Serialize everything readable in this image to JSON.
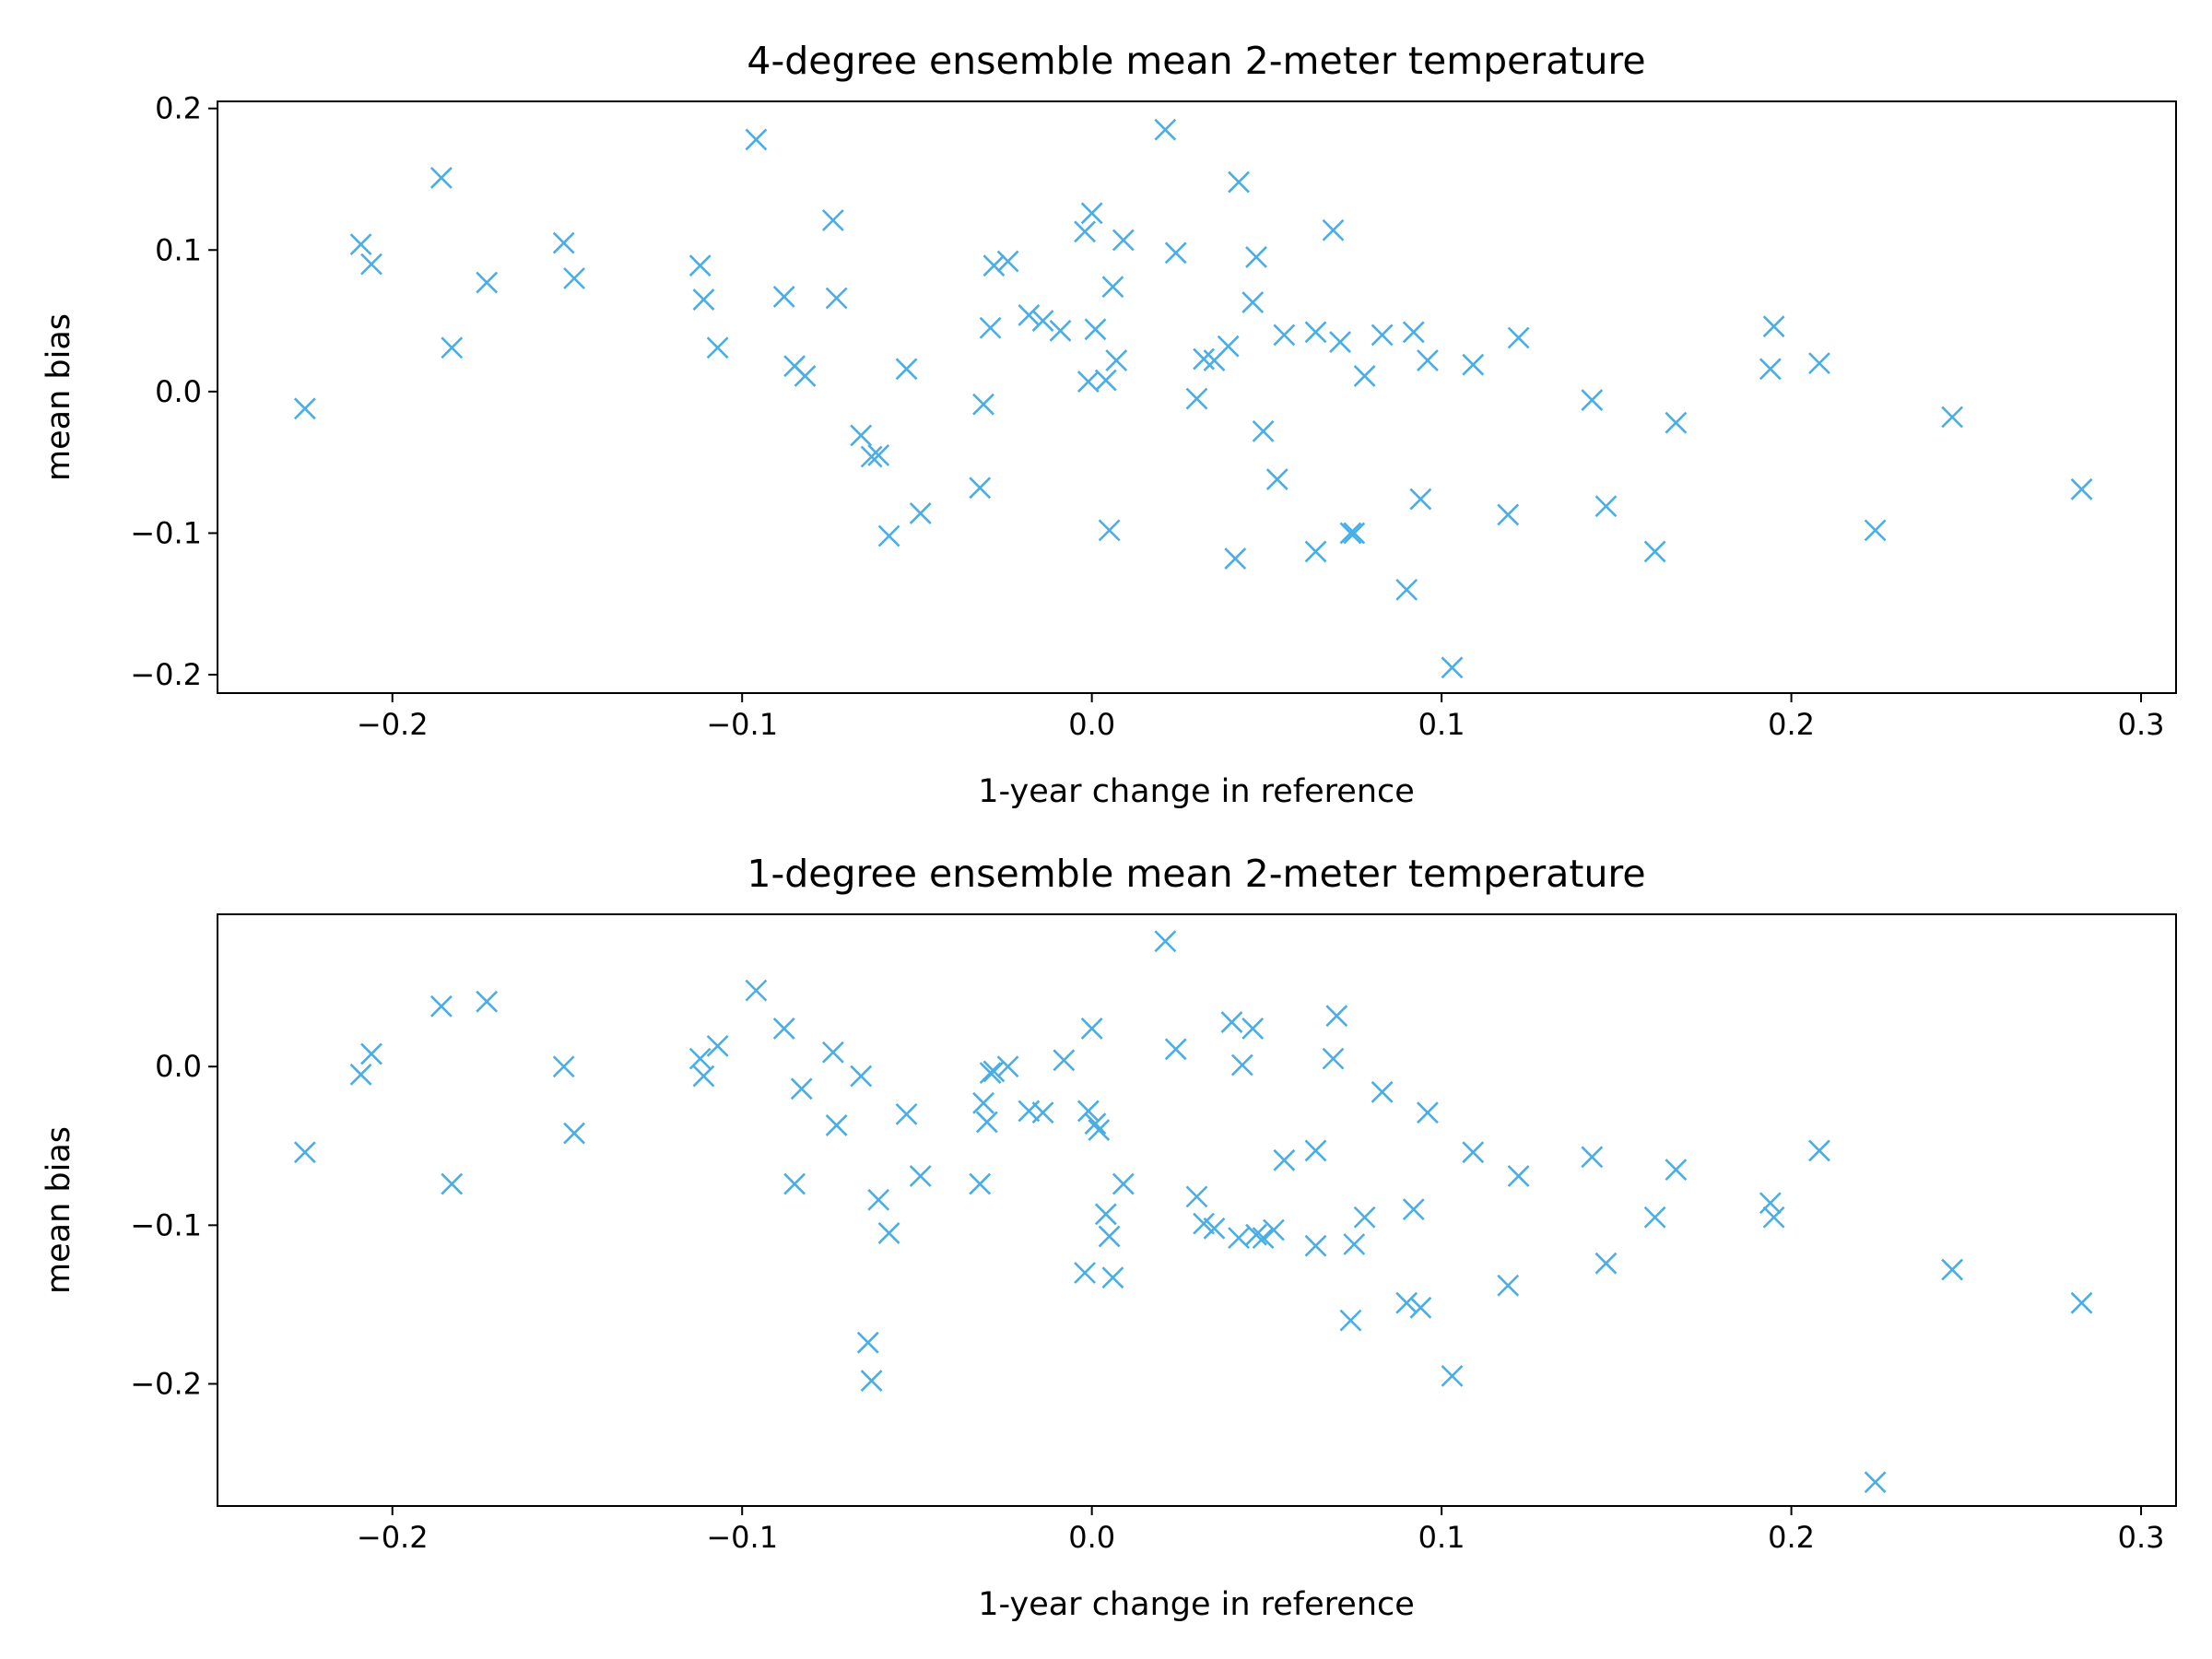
{
  "marker_color": "#4aaee6",
  "chart_data": [
    {
      "type": "scatter",
      "title": "4-degree ensemble mean 2-meter temperature",
      "xlabel": "1-year change in reference",
      "ylabel": "mean bias",
      "xlim": [
        -0.25,
        0.31
      ],
      "ylim": [
        -0.213,
        0.205
      ],
      "xticks": [
        -0.2,
        -0.1,
        0.0,
        0.1,
        0.2,
        0.3
      ],
      "xtick_labels": [
        "−0.2",
        "−0.1",
        "0.0",
        "0.1",
        "0.2",
        "0.3"
      ],
      "yticks": [
        -0.2,
        -0.1,
        0.0,
        0.1,
        0.2
      ],
      "ytick_labels": [
        "−0.2",
        "−0.1",
        "0.0",
        "0.1",
        "0.2"
      ],
      "marker": "x",
      "x": [
        -0.225,
        -0.209,
        -0.206,
        -0.186,
        -0.183,
        -0.173,
        -0.151,
        -0.148,
        -0.112,
        -0.111,
        -0.107,
        -0.096,
        -0.088,
        -0.085,
        -0.082,
        -0.074,
        -0.073,
        -0.066,
        -0.063,
        -0.061,
        -0.058,
        -0.053,
        -0.049,
        -0.032,
        -0.031,
        -0.029,
        -0.028,
        -0.024,
        -0.018,
        -0.014,
        -0.009,
        -0.002,
        -0.001,
        0.0,
        0.001,
        0.004,
        0.005,
        0.006,
        0.007,
        0.009,
        0.021,
        0.024,
        0.03,
        0.032,
        0.035,
        0.039,
        0.041,
        0.042,
        0.046,
        0.047,
        0.049,
        0.053,
        0.055,
        0.064,
        0.064,
        0.069,
        0.071,
        0.074,
        0.075,
        0.078,
        0.083,
        0.09,
        0.092,
        0.094,
        0.096,
        0.103,
        0.109,
        0.119,
        0.122,
        0.143,
        0.147,
        0.161,
        0.167,
        0.194,
        0.195,
        0.208,
        0.224,
        0.246,
        0.283
      ],
      "y": [
        -0.012,
        0.104,
        0.09,
        0.151,
        0.031,
        0.077,
        0.105,
        0.08,
        0.089,
        0.065,
        0.031,
        0.178,
        0.067,
        0.018,
        0.011,
        0.121,
        0.066,
        -0.031,
        -0.046,
        -0.045,
        -0.102,
        0.016,
        -0.086,
        -0.068,
        -0.009,
        0.045,
        0.089,
        0.092,
        0.054,
        0.05,
        0.043,
        0.113,
        0.007,
        0.126,
        0.044,
        0.008,
        -0.098,
        0.074,
        0.022,
        0.107,
        0.185,
        0.098,
        -0.005,
        0.023,
        0.022,
        0.032,
        -0.118,
        0.148,
        0.063,
        0.095,
        -0.028,
        -0.062,
        0.04,
        -0.113,
        0.042,
        0.114,
        0.035,
        -0.1,
        -0.1,
        0.011,
        0.04,
        -0.14,
        0.042,
        -0.076,
        0.022,
        -0.195,
        0.019,
        -0.087,
        0.038,
        -0.006,
        -0.081,
        -0.113,
        -0.022,
        0.016,
        0.046,
        0.02,
        -0.098,
        -0.018,
        -0.069
      ]
    },
    {
      "type": "scatter",
      "title": "1-degree ensemble mean 2-meter temperature",
      "xlabel": "1-year change in reference",
      "ylabel": "mean bias",
      "xlim": [
        -0.25,
        0.31
      ],
      "ylim": [
        -0.277,
        0.096
      ],
      "xticks": [
        -0.2,
        -0.1,
        0.0,
        0.1,
        0.2,
        0.3
      ],
      "xtick_labels": [
        "−0.2",
        "−0.1",
        "0.0",
        "0.1",
        "0.2",
        "0.3"
      ],
      "yticks": [
        -0.2,
        -0.1,
        0.0
      ],
      "ytick_labels": [
        "−0.2",
        "−0.1",
        "0.0"
      ],
      "marker": "x",
      "x": [
        -0.225,
        -0.209,
        -0.206,
        -0.186,
        -0.183,
        -0.173,
        -0.151,
        -0.148,
        -0.112,
        -0.111,
        -0.107,
        -0.096,
        -0.088,
        -0.085,
        -0.083,
        -0.074,
        -0.073,
        -0.066,
        -0.064,
        -0.063,
        -0.061,
        -0.058,
        -0.053,
        -0.049,
        -0.032,
        -0.031,
        -0.03,
        -0.029,
        -0.028,
        -0.024,
        -0.018,
        -0.014,
        -0.008,
        -0.002,
        -0.001,
        0.0,
        0.001,
        0.002,
        0.004,
        0.005,
        0.006,
        0.009,
        0.021,
        0.024,
        0.03,
        0.032,
        0.035,
        0.04,
        0.042,
        0.043,
        0.046,
        0.047,
        0.049,
        0.052,
        0.055,
        0.064,
        0.064,
        0.069,
        0.07,
        0.074,
        0.075,
        0.078,
        0.083,
        0.09,
        0.092,
        0.094,
        0.096,
        0.103,
        0.109,
        0.119,
        0.122,
        0.143,
        0.147,
        0.161,
        0.167,
        0.194,
        0.195,
        0.208,
        0.224,
        0.246,
        0.283
      ],
      "y": [
        -0.054,
        -0.005,
        0.008,
        0.038,
        -0.074,
        0.041,
        0.0,
        -0.042,
        0.005,
        -0.006,
        0.013,
        0.048,
        0.024,
        -0.074,
        -0.014,
        0.009,
        -0.037,
        -0.006,
        -0.174,
        -0.198,
        -0.084,
        -0.105,
        -0.03,
        -0.069,
        -0.074,
        -0.023,
        -0.035,
        -0.004,
        -0.003,
        0.0,
        -0.028,
        -0.029,
        0.004,
        -0.13,
        -0.028,
        0.024,
        -0.036,
        -0.04,
        -0.093,
        -0.107,
        -0.133,
        -0.074,
        0.079,
        0.011,
        -0.082,
        -0.099,
        -0.102,
        0.028,
        -0.108,
        0.001,
        0.024,
        -0.106,
        -0.108,
        -0.103,
        -0.059,
        -0.113,
        -0.053,
        0.005,
        0.032,
        -0.16,
        -0.112,
        -0.095,
        -0.016,
        -0.149,
        -0.09,
        -0.152,
        -0.029,
        -0.195,
        -0.054,
        -0.138,
        -0.069,
        -0.057,
        -0.124,
        -0.095,
        -0.065,
        -0.086,
        -0.095,
        -0.053,
        -0.262,
        -0.128,
        -0.149
      ]
    }
  ]
}
